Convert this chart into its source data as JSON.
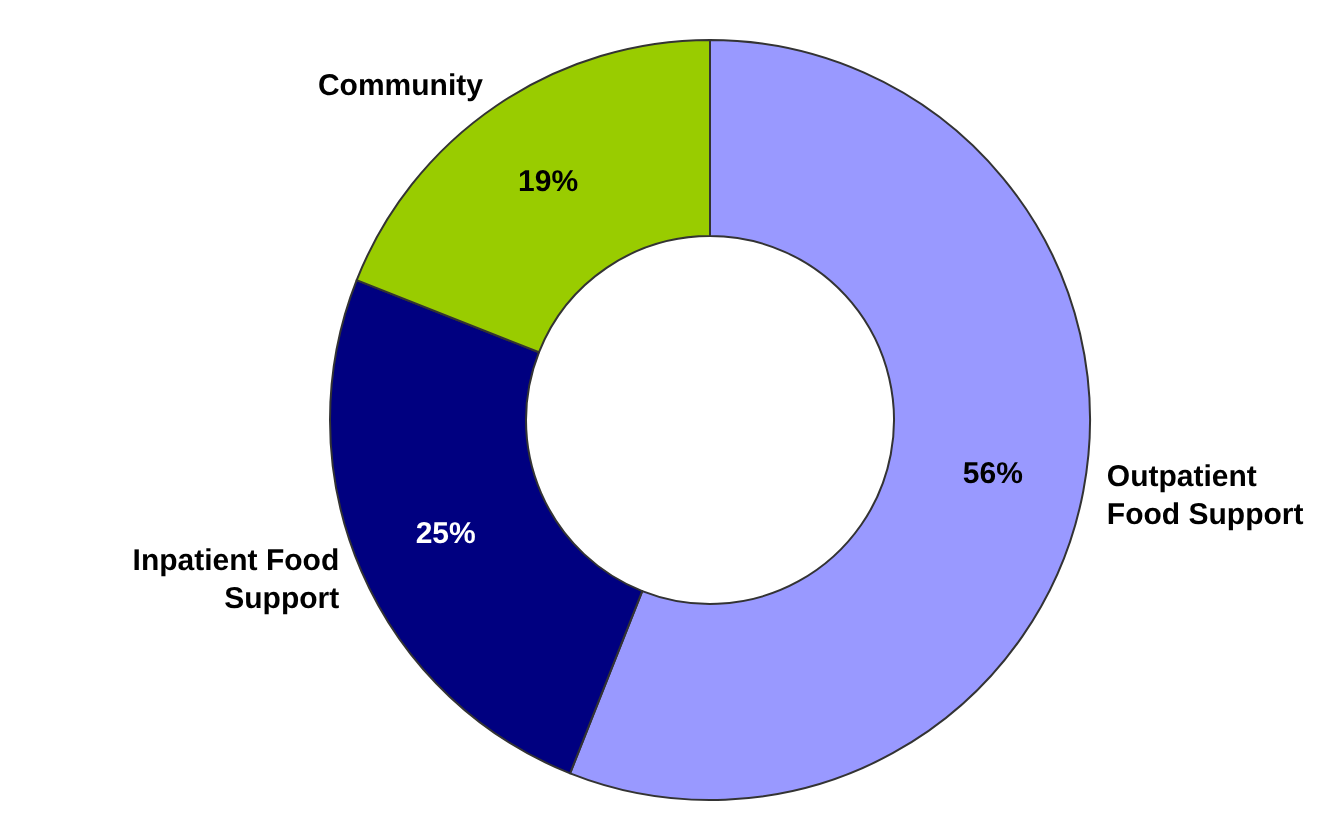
{
  "chart_data": {
    "type": "donut",
    "categories": [
      "Outpatient\nFood Support",
      "Inpatient Food\nSupport",
      "Community"
    ],
    "values": [
      56,
      25,
      19
    ],
    "colors": [
      "#9999ff",
      "#000080",
      "#99cc00"
    ],
    "value_labels": [
      "56%",
      "25%",
      "19%"
    ],
    "legend": false
  }
}
